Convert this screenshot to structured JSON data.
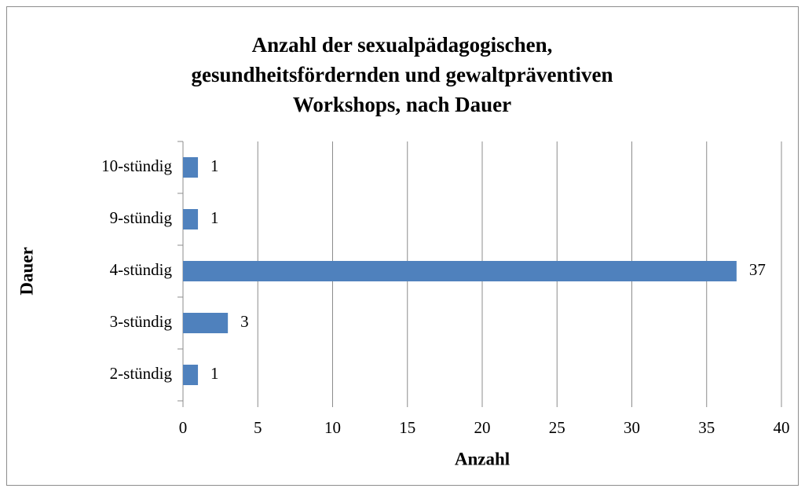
{
  "chart_data": {
    "type": "barh",
    "title": [
      "Anzahl der sexualpädagogischen,",
      "gesundheitsfördernden und gewaltpräventiven",
      "Workshops, nach Dauer"
    ],
    "x_label": "Anzahl",
    "y_label": "Dauer",
    "categories": [
      "2-stündig",
      "3-stündig",
      "4-stündig",
      "9-stündig",
      "10-stündig"
    ],
    "values": [
      1,
      3,
      37,
      1,
      1
    ],
    "color": "#4f81bd",
    "xlim": [
      0,
      40
    ],
    "xticks": [
      0,
      5,
      10,
      15,
      20,
      25,
      30,
      35,
      40
    ],
    "grid": true
  }
}
